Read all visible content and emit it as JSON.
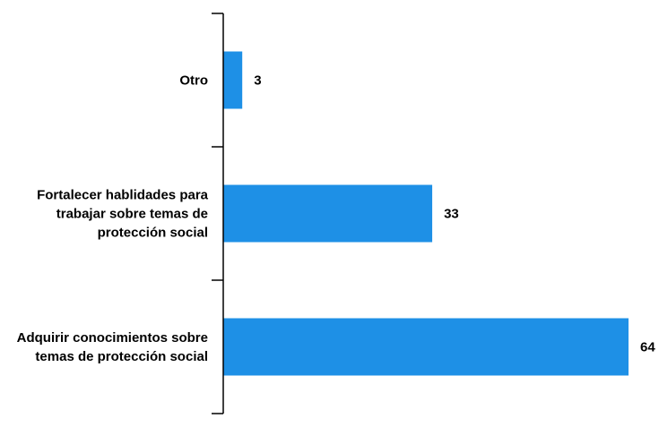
{
  "chart_data": {
    "type": "bar",
    "orientation": "horizontal",
    "categories": [
      "Adquirir conocimientos sobre temas de protección social",
      "Fortalecer hablidades para trabajar sobre temas de protección social",
      "Otro"
    ],
    "category_lines": [
      [
        "Adquirir conocimientos sobre",
        "temas de protección social"
      ],
      [
        "Fortalecer hablidades para",
        "trabajar sobre temas de",
        "protección social"
      ],
      [
        "Otro"
      ]
    ],
    "values": [
      64,
      33,
      3
    ],
    "data_labels": [
      "64",
      "33",
      "3"
    ],
    "title": "",
    "xlabel": "",
    "ylabel": "",
    "xlim": [
      0,
      64
    ],
    "grid": false,
    "legend": "none",
    "bar_color": "#1e90e6",
    "axis_color": "#000000"
  }
}
